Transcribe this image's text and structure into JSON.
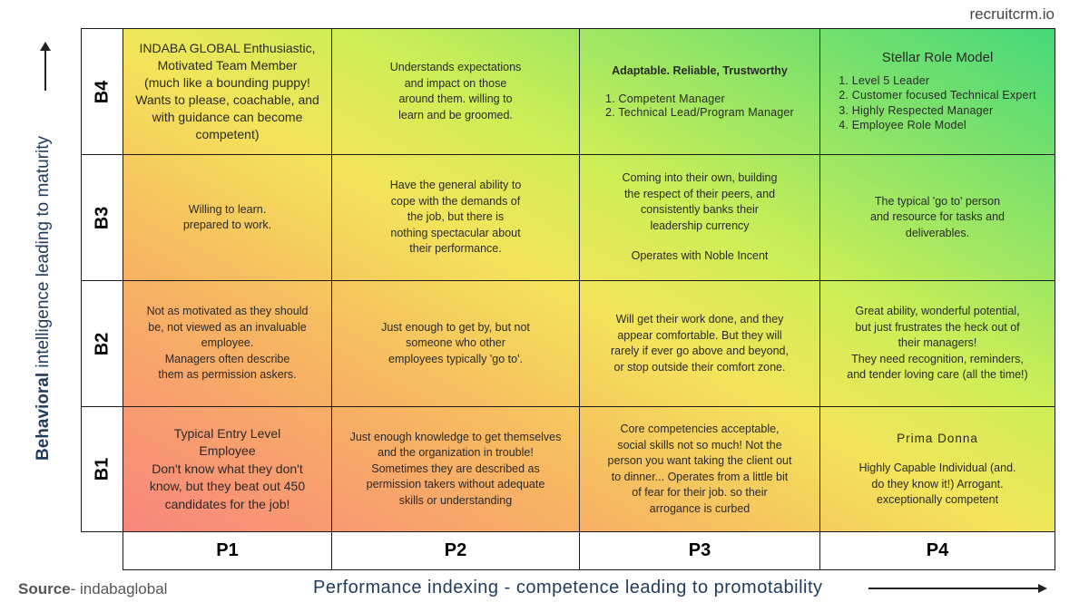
{
  "brand": "recruitcrm.io",
  "y_axis": {
    "bold": "Behavioral",
    "rest": "intelligence leading to maturity"
  },
  "x_axis": "Performance indexing - competence leading to promotability",
  "source": {
    "bold": "Source",
    "rest": "- indabaglobal"
  },
  "columns": [
    "P1",
    "P2",
    "P3",
    "P4"
  ],
  "rows": [
    {
      "label": "B4",
      "cells": [
        {
          "paragraphs": [
            [
              "INDABA GLOBAL Enthusiastic,",
              "Motivated Team Member",
              "(much like a bounding puppy!",
              "Wants to please, coachable, and",
              "with guidance can become",
              "competent)"
            ]
          ]
        },
        {
          "paragraphs": [
            [
              "Understands expectations",
              "and impact on those",
              "around them. willing to",
              "learn and be groomed."
            ]
          ]
        },
        {
          "heading": "Adaptable. Reliable, Trustworthy",
          "items": [
            "1. Competent Manager",
            "2. Technical Lead/Program Manager"
          ]
        },
        {
          "heading": "Stellar Role Model",
          "items": [
            "1. Level 5 Leader",
            "2. Customer focused Technical Expert",
            "3. Highly Respected Manager",
            "4. Employee Role Model"
          ]
        }
      ]
    },
    {
      "label": "B3",
      "cells": [
        {
          "paragraphs": [
            [
              "Willing to learn.",
              "prepared to work."
            ]
          ]
        },
        {
          "paragraphs": [
            [
              "Have the general ability to",
              "cope with the demands of",
              "the job, but there is",
              "nothing spectacular about",
              "their performance."
            ]
          ]
        },
        {
          "paragraphs": [
            [
              "Coming into their own, building",
              "the respect of their peers, and",
              "consistently banks their",
              "leadership currency"
            ],
            [
              "Operates with Noble Incent"
            ]
          ]
        },
        {
          "paragraphs": [
            [
              "The typical 'go to' person",
              "and resource for tasks and",
              "deliverables."
            ]
          ]
        }
      ]
    },
    {
      "label": "B2",
      "cells": [
        {
          "paragraphs": [
            [
              "Not as motivated as they should",
              "be, not viewed as an invaluable",
              "employee.",
              "Managers often describe",
              "them as permission askers."
            ]
          ]
        },
        {
          "paragraphs": [
            [
              "Just enough to get by, but not",
              "someone who other",
              "employees typically 'go to'."
            ]
          ]
        },
        {
          "paragraphs": [
            [
              "Will get their work done, and they",
              "appear comfortable. But they will",
              "rarely if ever go above and beyond,",
              "or stop outside their comfort zone."
            ]
          ]
        },
        {
          "paragraphs": [
            [
              "Great ability, wonderful potential,",
              "but just frustrates the heck out of",
              "their managers!",
              "They need recognition, reminders,",
              "and tender loving care (all the time!)"
            ]
          ]
        }
      ]
    },
    {
      "label": "B1",
      "cells": [
        {
          "paragraphs": [
            [
              "Typical Entry Level",
              "Employee",
              "Don't know what they don't",
              "know, but they beat out 450",
              "candidates for the job!"
            ]
          ]
        },
        {
          "paragraphs": [
            [
              "Just enough knowledge to get themselves",
              "and the organization in trouble!",
              "Sometimes they are described as",
              "permission takers without adequate",
              "skills or understanding"
            ]
          ]
        },
        {
          "paragraphs": [
            [
              "Core competencies acceptable,",
              "social skills not so much! Not the",
              "person you want taking the client out",
              "to dinner... Operates from a little bit",
              "of fear for their job. so their",
              "arrogance is curbed"
            ]
          ]
        },
        {
          "paragraphs": [
            [
              "Prima Donna"
            ],
            [
              "Highly Capable Individual (and.",
              "do they know it!) Arrogant.",
              "exceptionally competent"
            ]
          ]
        }
      ]
    }
  ]
}
